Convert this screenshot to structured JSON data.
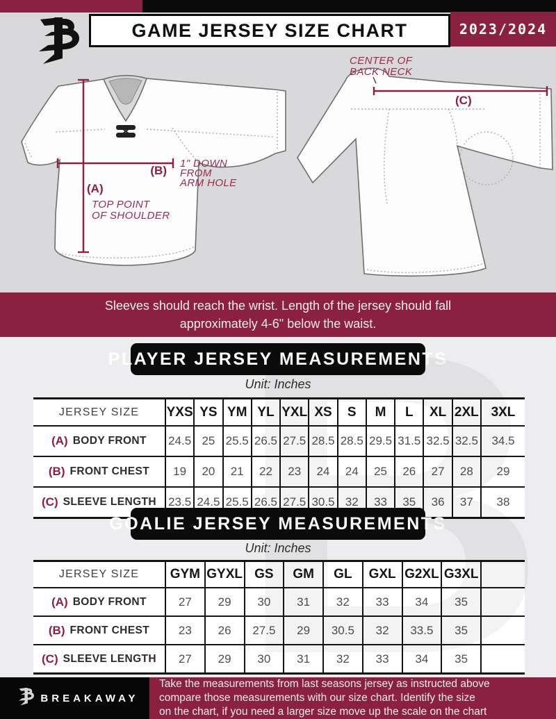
{
  "header": {
    "title": "GAME JERSEY SIZE CHART",
    "season": "2023/2024"
  },
  "watermark": {
    "letter": "B"
  },
  "diagram": {
    "front": {
      "a_key": "(A)",
      "a_label_line1": "TOP POINT",
      "a_label_line2": "OF SHOULDER",
      "b_key": "(B)",
      "b_label_line1": "1\" DOWN",
      "b_label_line2": "FROM",
      "b_label_line3": "ARM HOLE"
    },
    "back": {
      "c_key": "(C)",
      "neck_line1": "CENTER OF",
      "neck_line2": "BACK NECK"
    }
  },
  "notice": {
    "lines": [
      "Sleeves should reach the wrist. Length of the jersey should fall",
      "approximately 4-6\" below the waist."
    ]
  },
  "player": {
    "title": "PLAYER JERSEY MEASUREMENTS",
    "unit": "Unit: Inches",
    "table": {
      "corner": "JERSEY SIZE",
      "columns": [
        "YXS",
        "YS",
        "YM",
        "YL",
        "YXL",
        "XS",
        "S",
        "M",
        "L",
        "XL",
        "2XL",
        "3XL"
      ],
      "rows": [
        {
          "key": "(A)",
          "label": "BODY FRONT",
          "values": [
            "24.5",
            "25",
            "25.5",
            "26.5",
            "27.5",
            "28.5",
            "28.5",
            "29.5",
            "31.5",
            "32.5",
            "32.5",
            "34.5"
          ]
        },
        {
          "key": "(B)",
          "label": "FRONT CHEST",
          "values": [
            "19",
            "20",
            "21",
            "22",
            "23",
            "24",
            "24",
            "25",
            "26",
            "27",
            "28",
            "29"
          ]
        },
        {
          "key": "(C)",
          "label": "SLEEVE LENGTH",
          "values": [
            "23.5",
            "24.5",
            "25.5",
            "26.5",
            "27.5",
            "30.5",
            "32",
            "33",
            "35",
            "36",
            "37",
            "38"
          ]
        }
      ]
    }
  },
  "goalie": {
    "title": "GOALIE JERSEY MEASUREMENTS",
    "unit": "Unit: Inches",
    "table": {
      "corner": "JERSEY SIZE",
      "columns": [
        "GYM",
        "GYXL",
        "GS",
        "GM",
        "GL",
        "GXL",
        "G2XL",
        "G3XL",
        ""
      ],
      "rows": [
        {
          "key": "(A)",
          "label": "BODY FRONT",
          "values": [
            "27",
            "29",
            "30",
            "31",
            "32",
            "33",
            "34",
            "35",
            ""
          ]
        },
        {
          "key": "(B)",
          "label": "FRONT CHEST",
          "values": [
            "23",
            "26",
            "27.5",
            "29",
            "30.5",
            "32",
            "33.5",
            "35",
            ""
          ]
        },
        {
          "key": "(C)",
          "label": "SLEEVE LENGTH",
          "values": [
            "27",
            "29",
            "30",
            "31",
            "32",
            "33",
            "34",
            "35",
            ""
          ]
        }
      ]
    }
  },
  "footer": {
    "brand": "BREAKAWAY",
    "lines": [
      "Take the measurements from last seasons jersey as instructed above",
      "compare those measurements  with our size chart. Identify the size",
      "on the chart, if you need a larger size move up the scale on the chart"
    ]
  },
  "colors": {
    "crimson": "#8C2040",
    "annotation": "#9A2B4D",
    "black": "#0A0A0A"
  }
}
